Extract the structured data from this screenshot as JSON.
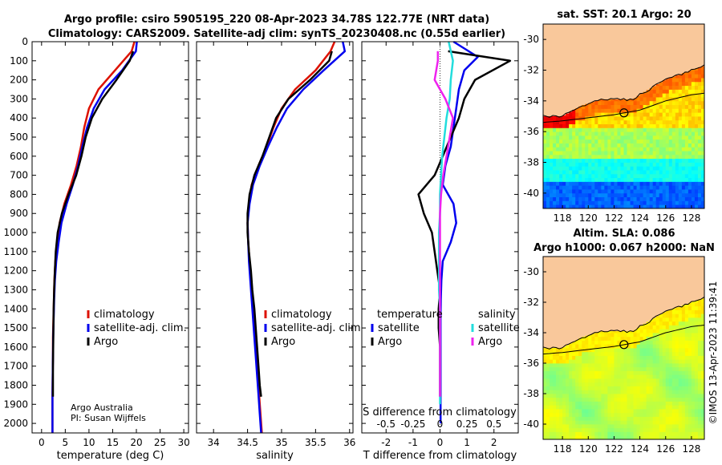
{
  "title_line1": "Argo profile: csiro 5905195_220 08-Apr-2023 34.78S 122.77E (NRT data)",
  "title_line2": "Climatology: CARS2009. Satellite-adj clim: synTS_20230408.nc (0.55d earlier)",
  "colors": {
    "climatology": "#dd1100",
    "satellite_adj": "#0000ee",
    "argo": "#000000",
    "satellite": "#22dddd",
    "salinity_argo": "#ee22ee",
    "land": "#f9c89b"
  },
  "chart_data": [
    {
      "id": "temperature",
      "type": "line",
      "xlabel": "temperature (deg C)",
      "ylabel": "",
      "xlim": [
        -2,
        31
      ],
      "ylim": [
        2050,
        0
      ],
      "xticks": [
        0,
        5,
        10,
        15,
        20,
        25,
        30
      ],
      "xtick_labels": [
        "0",
        "5",
        "10",
        "15",
        "20",
        "25",
        "30"
      ],
      "yticks": [
        0,
        100,
        200,
        300,
        400,
        500,
        600,
        700,
        800,
        900,
        1000,
        1100,
        1200,
        1300,
        1400,
        1500,
        1600,
        1700,
        1800,
        1900,
        2000
      ],
      "ytick_labels": [
        "0",
        "100",
        "200",
        "300",
        "400",
        "500",
        "600",
        "700",
        "800",
        "900",
        "1000",
        "1100",
        "1200",
        "1300",
        "1400",
        "1500",
        "1600",
        "1700",
        "1800",
        "1900",
        "2000"
      ],
      "legend": [
        "climatology",
        "satellite-adj. clim.",
        "Argo"
      ],
      "annotation_lines": [
        "Argo Australia",
        "PI: Susan Wijffels"
      ],
      "series": [
        {
          "name": "climatology",
          "color": "#dd1100",
          "x": [
            19.6,
            19.0,
            15.5,
            12.0,
            10.0,
            9.0,
            8.3,
            7.4,
            6.2,
            4.8,
            3.8,
            3.3,
            2.9,
            2.7,
            2.6,
            2.5,
            2.4,
            2.4,
            2.35,
            2.3,
            2.3,
            2.3
          ],
          "y": [
            0,
            50,
            150,
            250,
            350,
            450,
            550,
            650,
            750,
            850,
            950,
            1050,
            1150,
            1250,
            1350,
            1450,
            1550,
            1650,
            1750,
            1850,
            1950,
            2050
          ]
        },
        {
          "name": "satellite-adj. clim.",
          "color": "#0000ee",
          "x": [
            20.1,
            19.9,
            17.0,
            13.3,
            11.0,
            9.6,
            8.6,
            7.7,
            6.6,
            5.3,
            4.2,
            3.6,
            3.1,
            2.8,
            2.65,
            2.55,
            2.45,
            2.4,
            2.35,
            2.3,
            2.3,
            2.3
          ],
          "y": [
            0,
            50,
            150,
            250,
            350,
            450,
            550,
            650,
            750,
            850,
            950,
            1050,
            1150,
            1250,
            1350,
            1450,
            1550,
            1650,
            1750,
            1850,
            1950,
            2050
          ]
        },
        {
          "name": "Argo",
          "color": "#000000",
          "x": [
            19.3,
            18.6,
            15.8,
            12.8,
            10.6,
            9.3,
            8.4,
            7.3,
            5.7,
            4.3,
            3.4,
            3.0,
            2.8,
            2.65,
            2.55,
            2.5,
            2.45,
            2.4,
            2.4,
            2.4
          ],
          "y": [
            50,
            100,
            200,
            300,
            400,
            500,
            600,
            700,
            800,
            900,
            1000,
            1100,
            1200,
            1300,
            1400,
            1500,
            1600,
            1700,
            1800,
            1860
          ]
        }
      ]
    },
    {
      "id": "salinity",
      "type": "line",
      "xlabel": "salinity",
      "xlim": [
        33.75,
        36.05
      ],
      "ylim": [
        2050,
        0
      ],
      "xticks": [
        34,
        34.5,
        35,
        35.5,
        36
      ],
      "xtick_labels": [
        "34",
        "34.5",
        "35",
        "35.5",
        "36"
      ],
      "legend": [
        "climatology",
        "satellite-adj. clim.",
        "Argo"
      ],
      "series": [
        {
          "name": "climatology",
          "color": "#dd1100",
          "x": [
            35.78,
            35.72,
            35.5,
            35.2,
            35.0,
            34.88,
            34.78,
            34.66,
            34.56,
            34.52,
            34.5,
            34.51,
            34.53,
            34.55,
            34.57,
            34.59,
            34.61,
            34.63,
            34.65,
            34.67,
            34.69,
            34.71
          ],
          "y": [
            0,
            50,
            150,
            250,
            350,
            450,
            550,
            650,
            750,
            850,
            950,
            1050,
            1150,
            1250,
            1350,
            1450,
            1550,
            1650,
            1750,
            1850,
            1950,
            2050
          ]
        },
        {
          "name": "satellite-adj. clim.",
          "color": "#0000ee",
          "x": [
            35.9,
            35.93,
            35.62,
            35.32,
            35.08,
            34.93,
            34.8,
            34.68,
            34.58,
            34.53,
            34.5,
            34.51,
            34.52,
            34.54,
            34.56,
            34.58,
            34.6,
            34.62,
            34.64,
            34.66,
            34.68,
            34.7
          ],
          "y": [
            0,
            50,
            150,
            250,
            350,
            450,
            550,
            650,
            750,
            850,
            950,
            1050,
            1150,
            1250,
            1350,
            1450,
            1550,
            1650,
            1750,
            1850,
            1950,
            2050
          ]
        },
        {
          "name": "Argo",
          "color": "#000000",
          "x": [
            35.74,
            35.7,
            35.42,
            35.1,
            34.92,
            34.82,
            34.72,
            34.6,
            34.53,
            34.5,
            34.5,
            34.52,
            34.55,
            34.57,
            34.6,
            34.62,
            34.64,
            34.66,
            34.68,
            34.7
          ],
          "y": [
            50,
            100,
            200,
            300,
            400,
            500,
            600,
            700,
            800,
            900,
            1000,
            1100,
            1200,
            1300,
            1400,
            1500,
            1600,
            1700,
            1800,
            1860
          ]
        }
      ]
    },
    {
      "id": "difference",
      "type": "line",
      "xlabel": "T difference from climatology",
      "xlabel_top": "S difference from climatology",
      "xlim": [
        -2.9,
        2.9
      ],
      "ylim": [
        2050,
        0
      ],
      "xticks": [
        -2,
        -1,
        0,
        1,
        2
      ],
      "xtick_labels": [
        "-2",
        "-1",
        "0",
        "1",
        "2"
      ],
      "s_xticks": [
        -0.5,
        -0.25,
        0,
        0.25,
        0.5
      ],
      "s_xtick_labels": [
        "-0.5",
        "-0.25",
        "0",
        "0.25",
        "0.5"
      ],
      "legend_temperature": {
        "title": "temperature",
        "entries": [
          "satellite",
          "Argo"
        ]
      },
      "legend_salinity": {
        "title": "salinity",
        "entries": [
          "satellite",
          "Argo"
        ]
      },
      "series": [
        {
          "name": "temperature satellite",
          "color": "#0000ee",
          "x": [
            0.5,
            1.4,
            0.9,
            0.7,
            0.6,
            0.5,
            0.4,
            0.2,
            0.1,
            0.5,
            0.6,
            0.4,
            0.1,
            0.05,
            0.03,
            0.02,
            0.02,
            0.02,
            0.02,
            0.02,
            0.02
          ],
          "y": [
            0,
            80,
            150,
            250,
            350,
            450,
            550,
            650,
            750,
            850,
            950,
            1050,
            1150,
            1250,
            1350,
            1450,
            1550,
            1650,
            1750,
            1850,
            2000
          ]
        },
        {
          "name": "temperature Argo",
          "color": "#000000",
          "x": [
            0.3,
            2.6,
            1.3,
            0.9,
            0.7,
            0.4,
            0.1,
            -0.2,
            -0.8,
            -0.6,
            -0.3,
            -0.2,
            -0.1,
            0.0,
            -0.05,
            -0.05,
            0.0,
            0.0,
            0.0,
            0.0
          ],
          "y": [
            50,
            100,
            200,
            300,
            400,
            500,
            600,
            700,
            800,
            900,
            1000,
            1100,
            1200,
            1300,
            1400,
            1500,
            1600,
            1700,
            1800,
            1860
          ]
        },
        {
          "name": "salinity satellite",
          "color": "#22dddd",
          "x": [
            0.08,
            0.12,
            0.1,
            0.09,
            0.06,
            0.04,
            0.02,
            0.01,
            0.0,
            0.0,
            -0.01,
            -0.01,
            -0.01,
            -0.01,
            0.0,
            0.0,
            0.0,
            0.0,
            0.0,
            0.0
          ],
          "y": [
            0,
            100,
            200,
            300,
            400,
            500,
            600,
            700,
            800,
            900,
            1000,
            1100,
            1200,
            1300,
            1400,
            1500,
            1600,
            1700,
            1800,
            1900
          ]
        },
        {
          "name": "salinity Argo",
          "color": "#ee22ee",
          "x": [
            -0.02,
            -0.02,
            -0.05,
            0.05,
            0.12,
            0.09,
            0.06,
            0.03,
            0.01,
            0.0,
            0.0,
            0.0,
            0.0,
            0.0,
            0.0,
            0.0,
            0.0,
            0.0,
            0.0,
            0.0
          ],
          "y": [
            50,
            100,
            200,
            300,
            400,
            500,
            600,
            700,
            800,
            900,
            1000,
            1100,
            1200,
            1300,
            1400,
            1500,
            1600,
            1700,
            1800,
            1860
          ]
        }
      ]
    },
    {
      "id": "sst_map",
      "type": "heatmap",
      "title": "sat. SST: 20.1 Argo: 20",
      "xlim": [
        116.5,
        129
      ],
      "ylim": [
        -41,
        -29
      ],
      "xticks": [
        118,
        120,
        122,
        124,
        126,
        128
      ],
      "xtick_labels": [
        "118",
        "120",
        "122",
        "124",
        "126",
        "128"
      ],
      "yticks": [
        -30,
        -32,
        -34,
        -36,
        -38,
        -40
      ],
      "ytick_labels": [
        "-30",
        "-32",
        "-34",
        "-36",
        "-38",
        "-40"
      ],
      "float_position": {
        "lon": 122.77,
        "lat": -34.78
      }
    },
    {
      "id": "sla_map",
      "type": "heatmap",
      "title_line1": "Altim. SLA: 0.086",
      "title_line2": "Argo h1000: 0.067 h2000: NaN",
      "xlim": [
        116.5,
        129
      ],
      "ylim": [
        -41,
        -29
      ],
      "xticks": [
        118,
        120,
        122,
        124,
        126,
        128
      ],
      "xtick_labels": [
        "118",
        "120",
        "122",
        "124",
        "126",
        "128"
      ],
      "yticks": [
        -30,
        -32,
        -34,
        -36,
        -38,
        -40
      ],
      "ytick_labels": [
        "-30",
        "-32",
        "-34",
        "-36",
        "-38",
        "-40"
      ],
      "float_position": {
        "lon": 122.77,
        "lat": -34.78
      }
    }
  ],
  "vertical_text": "©IMOS 13-Apr-2023 11:39:41"
}
